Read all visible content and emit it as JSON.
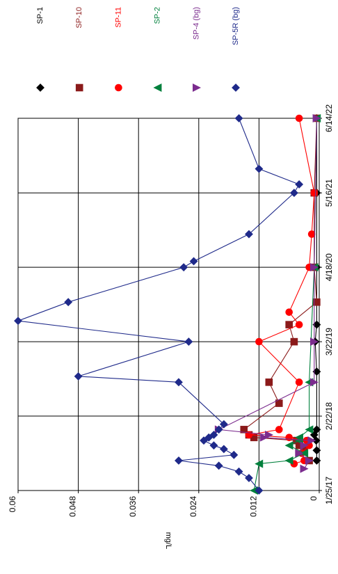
{
  "chart_data": {
    "type": "scatter",
    "title": "",
    "ylabel": "mg/L",
    "xlabel": "",
    "orientation": "rotated 90° clockwise (value axis runs along the page width, dates run down the page)",
    "x_ticks": [
      "1/25/17",
      "2/22/18",
      "3/22/19",
      "4/18/20",
      "5/16/21",
      "6/14/22"
    ],
    "x_range": [
      "1/25/17",
      "6/14/22"
    ],
    "y_ticks": [
      "0",
      "0.012",
      "0.024",
      "0.036",
      "0.048",
      "0.06"
    ],
    "ylim": [
      0,
      0.06
    ],
    "grid": true,
    "legend_position": "top",
    "series": [
      {
        "name": "SP-1",
        "color": "#000000",
        "marker": "diamond",
        "points": [
          {
            "x": "7/2/17",
            "y": 0.0005
          },
          {
            "x": "8/25/17",
            "y": 0.0005
          },
          {
            "x": "10/16/17",
            "y": 0.0006
          },
          {
            "x": "11/15/17",
            "y": 0.001
          },
          {
            "x": "12/13/17",
            "y": 0.0005
          },
          {
            "x": "10/15/18",
            "y": 0.0005
          },
          {
            "x": "3/22/19",
            "y": 0.0008
          },
          {
            "x": "6/20/19",
            "y": 0.0005
          },
          {
            "x": "4/18/20",
            "y": 0.0005
          },
          {
            "x": "5/16/21",
            "y": 0.0005
          },
          {
            "x": "6/14/22",
            "y": 0.0005
          }
        ]
      },
      {
        "name": "SP-10",
        "color": "#8b1a1a",
        "marker": "square",
        "points": [
          {
            "x": "7/2/17",
            "y": 0.002
          },
          {
            "x": "8/25/17",
            "y": 0.003
          },
          {
            "x": "9/20/17",
            "y": 0.004
          },
          {
            "x": "10/16/17",
            "y": 0.0045
          },
          {
            "x": "11/1/17",
            "y": 0.013
          },
          {
            "x": "11/15/17",
            "y": 0.014
          },
          {
            "x": "12/13/17",
            "y": 0.015
          },
          {
            "x": "5/1/18",
            "y": 0.008
          },
          {
            "x": "8/20/18",
            "y": 0.01
          },
          {
            "x": "3/22/19",
            "y": 0.005
          },
          {
            "x": "6/20/19",
            "y": 0.006
          },
          {
            "x": "10/17/19",
            "y": 0.0005
          },
          {
            "x": "4/18/20",
            "y": 0.001
          },
          {
            "x": "5/16/21",
            "y": 0.001
          },
          {
            "x": "6/14/22",
            "y": 0.0005
          }
        ]
      },
      {
        "name": "SP-11",
        "color": "#ff0000",
        "marker": "circle",
        "points": [
          {
            "x": "6/15/17",
            "y": 0.005
          },
          {
            "x": "7/2/17",
            "y": 0.003
          },
          {
            "x": "8/10/17",
            "y": 0.0035
          },
          {
            "x": "9/20/17",
            "y": 0.002
          },
          {
            "x": "10/16/17",
            "y": 0.0025
          },
          {
            "x": "11/1/17",
            "y": 0.006
          },
          {
            "x": "11/15/17",
            "y": 0.014
          },
          {
            "x": "12/13/17",
            "y": 0.008
          },
          {
            "x": "8/20/18",
            "y": 0.004
          },
          {
            "x": "3/22/19",
            "y": 0.012
          },
          {
            "x": "6/20/19",
            "y": 0.004
          },
          {
            "x": "8/25/19",
            "y": 0.006
          },
          {
            "x": "4/18/20",
            "y": 0.002
          },
          {
            "x": "10/10/20",
            "y": 0.0015
          },
          {
            "x": "5/16/21",
            "y": 0.001
          },
          {
            "x": "6/14/22",
            "y": 0.004
          }
        ]
      },
      {
        "name": "SP-2",
        "color": "#00803c",
        "marker": "triangle-left",
        "points": [
          {
            "x": "1/25/17",
            "y": 0.013
          },
          {
            "x": "6/15/17",
            "y": 0.012
          },
          {
            "x": "7/2/17",
            "y": 0.006
          },
          {
            "x": "8/10/17",
            "y": 0.003
          },
          {
            "x": "9/20/17",
            "y": 0.006
          },
          {
            "x": "10/16/17",
            "y": 0.004
          },
          {
            "x": "11/1/17",
            "y": 0.004
          },
          {
            "x": "12/13/17",
            "y": 0.002
          },
          {
            "x": "8/20/18",
            "y": 0.002
          },
          {
            "x": "4/18/20",
            "y": 0.001
          },
          {
            "x": "6/14/22",
            "y": 0.0005
          }
        ]
      },
      {
        "name": "SP-4 (bg)",
        "color": "#7b2c8e",
        "marker": "triangle-right",
        "points": [
          {
            "x": "5/20/17",
            "y": 0.003
          },
          {
            "x": "7/2/17",
            "y": 0.002
          },
          {
            "x": "8/10/17",
            "y": 0.004
          },
          {
            "x": "9/20/17",
            "y": 0.003
          },
          {
            "x": "10/16/17",
            "y": 0.0015
          },
          {
            "x": "11/1/17",
            "y": 0.011
          },
          {
            "x": "11/15/17",
            "y": 0.01
          },
          {
            "x": "12/13/17",
            "y": 0.02
          },
          {
            "x": "8/20/18",
            "y": 0.001
          },
          {
            "x": "3/22/19",
            "y": 0.001
          },
          {
            "x": "4/18/20",
            "y": 0.001
          },
          {
            "x": "6/14/22",
            "y": 0.0005
          }
        ]
      },
      {
        "name": "SP-5R (bg)",
        "color": "#1f2a8a",
        "marker": "diamond",
        "points": [
          {
            "x": "1/25/17",
            "y": 0.012
          },
          {
            "x": "4/1/17",
            "y": 0.014
          },
          {
            "x": "5/5/17",
            "y": 0.016
          },
          {
            "x": "6/5/17",
            "y": 0.02
          },
          {
            "x": "7/2/17",
            "y": 0.028
          },
          {
            "x": "8/1/17",
            "y": 0.017
          },
          {
            "x": "9/1/17",
            "y": 0.019
          },
          {
            "x": "9/20/17",
            "y": 0.021
          },
          {
            "x": "10/16/17",
            "y": 0.023
          },
          {
            "x": "11/1/17",
            "y": 0.022
          },
          {
            "x": "11/15/17",
            "y": 0.021
          },
          {
            "x": "12/13/17",
            "y": 0.02
          },
          {
            "x": "1/10/18",
            "y": 0.019
          },
          {
            "x": "8/20/18",
            "y": 0.028
          },
          {
            "x": "9/20/18",
            "y": 0.048
          },
          {
            "x": "3/22/19",
            "y": 0.026
          },
          {
            "x": "7/10/19",
            "y": 0.06
          },
          {
            "x": "10/17/19",
            "y": 0.05
          },
          {
            "x": "4/18/20",
            "y": 0.027
          },
          {
            "x": "5/20/20",
            "y": 0.025
          },
          {
            "x": "10/10/20",
            "y": 0.014
          },
          {
            "x": "5/16/21",
            "y": 0.005
          },
          {
            "x": "6/30/21",
            "y": 0.004
          },
          {
            "x": "9/20/21",
            "y": 0.012
          },
          {
            "x": "6/14/22",
            "y": 0.016
          }
        ]
      }
    ]
  }
}
